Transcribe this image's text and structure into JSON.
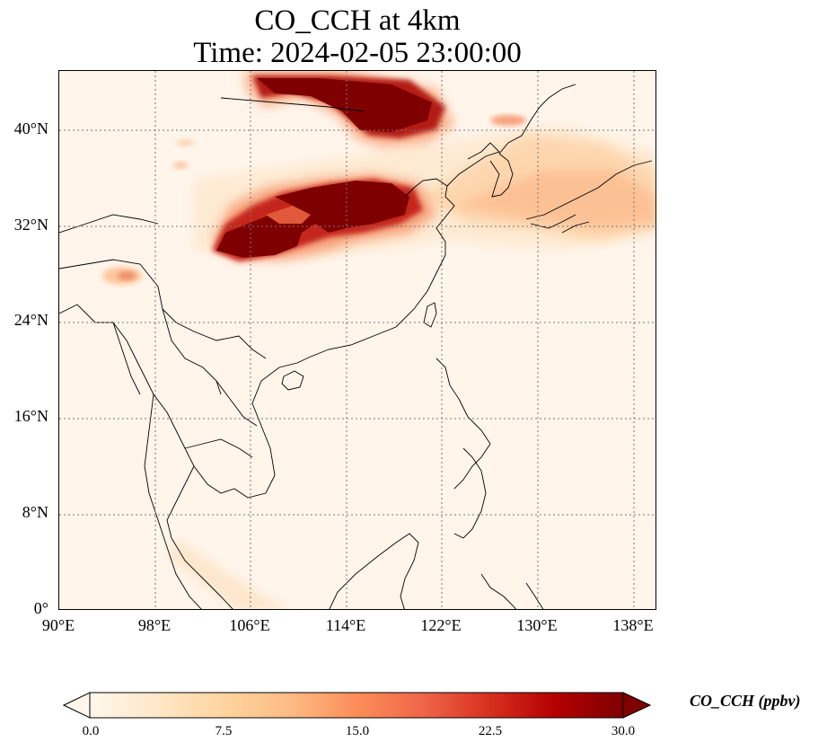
{
  "title": {
    "line1": "CO_CCH at 4km",
    "line2": "Time: 2024-02-05 23:00:00"
  },
  "map": {
    "lon_range": [
      90,
      140
    ],
    "lat_range": [
      0,
      45
    ],
    "gridlines": "dotted",
    "lat_ticks": [
      "0°",
      "8°N",
      "16°N",
      "24°N",
      "32°N",
      "40°N"
    ],
    "lon_ticks": [
      "90°E",
      "98°E",
      "106°E",
      "114°E",
      "122°E",
      "130°E",
      "138°E"
    ]
  },
  "colorbar": {
    "label": "CO_CCH (ppbv)",
    "ticks": [
      "0.0",
      "7.5",
      "15.0",
      "22.5",
      "30.0"
    ],
    "range": [
      0.0,
      30.0
    ],
    "extend": "both",
    "colormap": "OrRd",
    "colors": [
      "#fff7ec",
      "#fee8c8",
      "#fdd49e",
      "#fdbb84",
      "#fc8d59",
      "#ef6548",
      "#d7301f",
      "#b30000",
      "#7f0000"
    ]
  }
}
